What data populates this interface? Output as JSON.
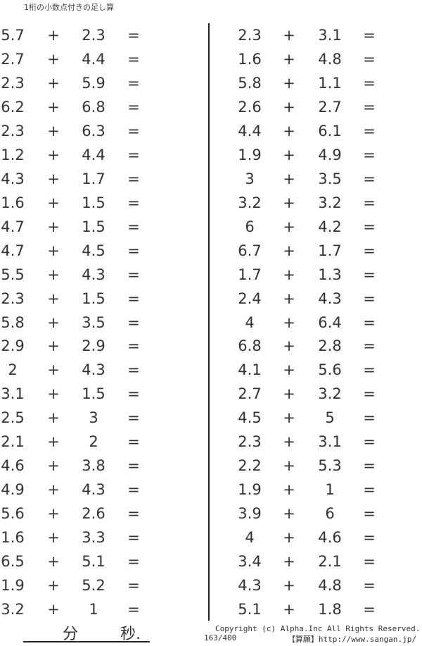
{
  "title": "1桁の小数点付きの足し算",
  "operator": "+",
  "equals": "=",
  "left_problems": [
    [
      "5.7",
      "2.3"
    ],
    [
      "2.7",
      "4.4"
    ],
    [
      "2.3",
      "5.9"
    ],
    [
      "6.2",
      "6.8"
    ],
    [
      "2.3",
      "6.3"
    ],
    [
      "1.2",
      "4.4"
    ],
    [
      "4.3",
      "1.7"
    ],
    [
      "1.6",
      "1.5"
    ],
    [
      "4.7",
      "1.5"
    ],
    [
      "4.7",
      "4.5"
    ],
    [
      "5.5",
      "4.3"
    ],
    [
      "2.3",
      "1.5"
    ],
    [
      "5.8",
      "3.5"
    ],
    [
      "2.9",
      "2.9"
    ],
    [
      "2",
      "4.3"
    ],
    [
      "3.1",
      "1.5"
    ],
    [
      "2.5",
      "3"
    ],
    [
      "2.1",
      "2"
    ],
    [
      "4.6",
      "3.8"
    ],
    [
      "4.9",
      "4.3"
    ],
    [
      "5.6",
      "2.6"
    ],
    [
      "1.6",
      "3.3"
    ],
    [
      "6.5",
      "5.1"
    ],
    [
      "1.9",
      "5.2"
    ],
    [
      "3.2",
      "1"
    ]
  ],
  "right_problems": [
    [
      "2.3",
      "3.1"
    ],
    [
      "1.6",
      "4.8"
    ],
    [
      "5.8",
      "1.1"
    ],
    [
      "2.6",
      "2.7"
    ],
    [
      "4.4",
      "6.1"
    ],
    [
      "1.9",
      "4.9"
    ],
    [
      "3",
      "3.5"
    ],
    [
      "3.2",
      "3.2"
    ],
    [
      "6",
      "4.2"
    ],
    [
      "6.7",
      "1.7"
    ],
    [
      "1.7",
      "1.3"
    ],
    [
      "2.4",
      "4.3"
    ],
    [
      "4",
      "6.4"
    ],
    [
      "6.8",
      "2.8"
    ],
    [
      "4.1",
      "5.6"
    ],
    [
      "2.7",
      "3.2"
    ],
    [
      "4.5",
      "5"
    ],
    [
      "2.3",
      "3.1"
    ],
    [
      "2.2",
      "5.3"
    ],
    [
      "1.9",
      "1"
    ],
    [
      "3.9",
      "6"
    ],
    [
      "4",
      "4.6"
    ],
    [
      "3.4",
      "2.1"
    ],
    [
      "4.3",
      "4.8"
    ],
    [
      "5.1",
      "1.8"
    ]
  ],
  "footer": {
    "minutes_label": "分",
    "seconds_label": "秒.",
    "copyright": "Copyright (c)  Alpha.Inc All Rights Reserved.",
    "page_number": "163/400",
    "site": "【算願】http://www.sangan.jp/"
  }
}
